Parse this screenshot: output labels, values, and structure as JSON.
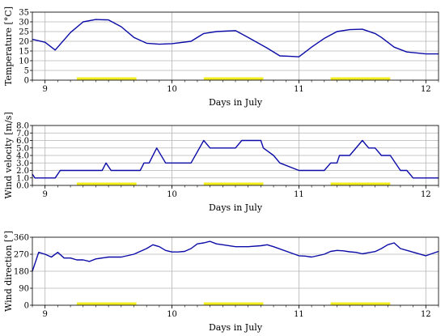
{
  "chart_data": [
    {
      "type": "line",
      "xlabel": "Days in July",
      "ylabel": "Temperature [°C]",
      "xlim": [
        8.9,
        12.1
      ],
      "ylim": [
        0,
        35
      ],
      "x_ticks": [
        "9",
        "10",
        "11",
        "12"
      ],
      "y_ticks": [
        "0",
        "5",
        "10",
        "15",
        "20",
        "25",
        "30",
        "35"
      ],
      "grid": true,
      "series": [
        {
          "x": [
            8.9,
            9.0,
            9.08,
            9.2,
            9.3,
            9.4,
            9.5,
            9.6,
            9.7,
            9.8,
            9.9,
            10.0,
            10.15,
            10.25,
            10.35,
            10.5,
            10.6,
            10.75,
            10.85,
            10.95,
            11.0,
            11.1,
            11.2,
            11.3,
            11.4,
            11.5,
            11.6,
            11.65,
            11.75,
            11.85,
            12.0,
            12.1
          ],
          "y": [
            21,
            19.5,
            15.5,
            24.5,
            30,
            31.2,
            31,
            27.5,
            22,
            19,
            18.5,
            18.8,
            20,
            24,
            25,
            25.5,
            22,
            16.5,
            12.5,
            12.2,
            12,
            17,
            21.5,
            25,
            26,
            26.2,
            24,
            22,
            17,
            14.5,
            13.5,
            13.5
          ]
        }
      ],
      "highlight_bars": [
        [
          9.25,
          9.72
        ],
        [
          10.25,
          10.72
        ],
        [
          11.25,
          11.72
        ]
      ],
      "line_color": "#0b0ba8",
      "highlight_color": "#f2ec1a"
    },
    {
      "type": "line",
      "xlabel": "Days in July",
      "ylabel": "Wind velocity [m/s]",
      "xlim": [
        8.9,
        12.1
      ],
      "ylim": [
        0,
        8
      ],
      "x_ticks": [
        "9",
        "10",
        "11",
        "12"
      ],
      "y_ticks": [
        "0.0",
        "1.0",
        "2.0",
        "3.0",
        "4.0",
        "5.0",
        "6.0",
        "7.0",
        "8.0"
      ],
      "grid": true,
      "series": [
        {
          "x": [
            8.9,
            8.92,
            9.08,
            9.12,
            9.45,
            9.48,
            9.52,
            9.58,
            9.75,
            9.78,
            9.82,
            9.88,
            9.95,
            10.15,
            10.25,
            10.3,
            10.5,
            10.55,
            10.7,
            10.72,
            10.8,
            10.85,
            11.0,
            11.2,
            11.25,
            11.3,
            11.32,
            11.4,
            11.5,
            11.55,
            11.6,
            11.65,
            11.72,
            11.8,
            11.85,
            11.9,
            12.0,
            12.1
          ],
          "y": [
            1.5,
            1,
            1,
            2,
            2,
            3,
            2,
            2,
            2,
            3,
            3,
            5,
            3,
            3,
            6,
            5,
            5,
            6,
            6,
            5,
            4,
            3,
            2,
            2,
            3,
            3,
            4,
            4,
            6,
            5,
            5,
            4,
            4,
            2,
            2,
            1,
            1,
            1
          ]
        }
      ],
      "highlight_bars": [
        [
          9.25,
          9.72
        ],
        [
          10.25,
          10.72
        ],
        [
          11.25,
          11.72
        ]
      ],
      "line_color": "#0b0ba8",
      "highlight_color": "#f2ec1a"
    },
    {
      "type": "line",
      "xlabel": "Days in July",
      "ylabel": "Wind direction [°]",
      "xlim": [
        8.9,
        12.1
      ],
      "ylim": [
        0,
        360
      ],
      "x_ticks": [
        "9",
        "10",
        "11",
        "12"
      ],
      "y_ticks": [
        "0",
        "90",
        "180",
        "270",
        "360"
      ],
      "grid": true,
      "series": [
        {
          "x": [
            8.9,
            8.95,
            9.0,
            9.05,
            9.1,
            9.15,
            9.2,
            9.25,
            9.3,
            9.35,
            9.4,
            9.5,
            9.6,
            9.7,
            9.75,
            9.8,
            9.85,
            9.9,
            9.95,
            10.0,
            10.05,
            10.1,
            10.15,
            10.2,
            10.25,
            10.3,
            10.35,
            10.4,
            10.5,
            10.6,
            10.7,
            10.75,
            10.8,
            11.0,
            11.05,
            11.1,
            11.2,
            11.25,
            11.3,
            11.35,
            11.4,
            11.45,
            11.5,
            11.55,
            11.6,
            11.65,
            11.7,
            11.75,
            11.8,
            12.0,
            12.1
          ],
          "y": [
            180,
            280,
            270,
            255,
            280,
            250,
            250,
            240,
            240,
            232,
            245,
            255,
            255,
            270,
            285,
            300,
            320,
            310,
            290,
            282,
            282,
            285,
            300,
            325,
            330,
            338,
            325,
            320,
            310,
            310,
            315,
            320,
            310,
            262,
            260,
            255,
            270,
            285,
            290,
            288,
            283,
            280,
            272,
            278,
            284,
            300,
            320,
            330,
            300,
            262,
            285
          ]
        }
      ],
      "highlight_bars": [
        [
          9.25,
          9.72
        ],
        [
          10.25,
          10.72
        ],
        [
          11.25,
          11.72
        ]
      ],
      "line_color": "#0b0ba8",
      "highlight_color": "#f2ec1a"
    }
  ]
}
